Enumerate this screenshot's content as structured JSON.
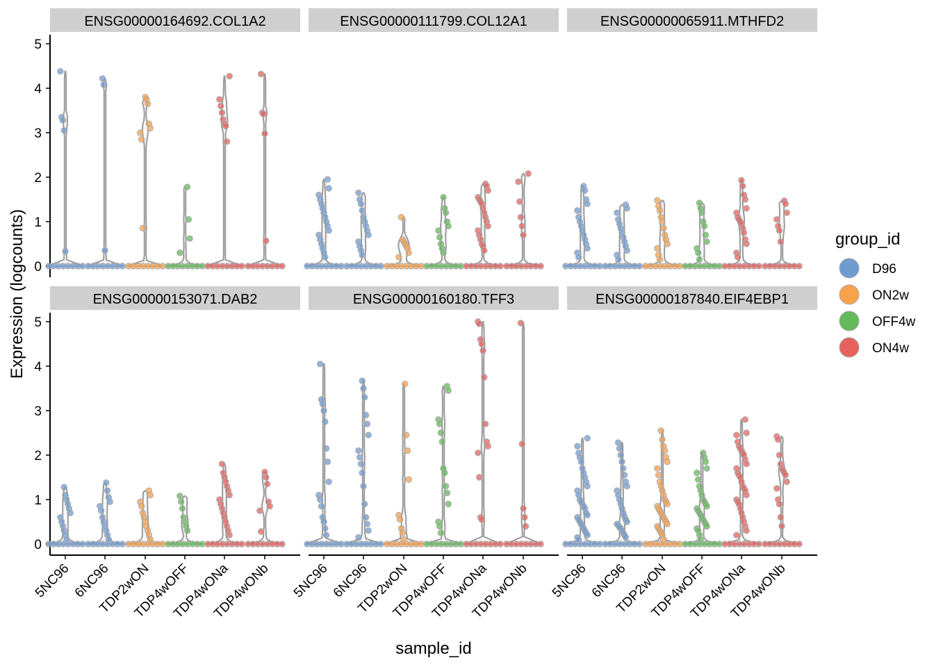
{
  "chart_data": {
    "type": "violin",
    "xlabel": "sample_id",
    "ylabel": "Expression (logcounts)",
    "ylim": [
      0,
      5.2
    ],
    "yticks": [
      0,
      1,
      2,
      3,
      4,
      5
    ],
    "categories": [
      "5NC96",
      "6NC96",
      "TDP2wON",
      "TDP4wOFF",
      "TDP4wONa",
      "TDP4wONb"
    ],
    "category_group": [
      "D96",
      "D96",
      "ON2w",
      "OFF4w",
      "ON4w",
      "ON4w"
    ],
    "legend": {
      "title": "group_id",
      "position": "right",
      "entries": [
        {
          "label": "D96",
          "color": "#6F9BD1"
        },
        {
          "label": "ON2w",
          "color": "#F9A24C"
        },
        {
          "label": "OFF4w",
          "color": "#63BA5A"
        },
        {
          "label": "ON4w",
          "color": "#E6615E"
        }
      ]
    },
    "panels": [
      {
        "gene": "ENSG00000164692.COL1A2",
        "max": [
          4.38,
          4.22,
          3.8,
          1.78,
          4.27,
          4.32
        ],
        "points": [
          [
            4.38,
            3.35,
            3.28,
            3.05,
            0.33
          ],
          [
            4.22,
            4.08,
            0.35
          ],
          [
            3.8,
            3.75,
            3.65,
            3.2,
            3.1,
            3.0,
            2.85,
            0.85
          ],
          [
            1.78,
            1.05,
            0.62,
            0.3
          ],
          [
            4.27,
            3.75,
            3.6,
            3.45,
            3.3,
            3.2,
            3.15,
            2.8
          ],
          [
            4.32,
            3.45,
            3.42,
            2.98,
            0.57
          ]
        ]
      },
      {
        "gene": "ENSG00000111799.COL12A1",
        "max": [
          1.95,
          1.65,
          1.1,
          1.55,
          1.85,
          2.08
        ],
        "points": [
          [
            1.95,
            1.75,
            1.6,
            1.5,
            1.4,
            1.3,
            1.2,
            1.1,
            1.0,
            0.9,
            0.8,
            0.7,
            0.6,
            0.5,
            0.4,
            0.3,
            0.2
          ],
          [
            1.65,
            1.5,
            1.4,
            1.25,
            1.1,
            1.0,
            0.9,
            0.8,
            0.7,
            0.55,
            0.45,
            0.35,
            0.25
          ],
          [
            1.1,
            0.6,
            0.55,
            0.5,
            0.45,
            0.4,
            0.3,
            0.2
          ],
          [
            1.55,
            1.3,
            1.2,
            1.0,
            0.9,
            0.8,
            0.65,
            0.5,
            0.4,
            0.3
          ],
          [
            1.85,
            1.8,
            1.7,
            1.55,
            1.5,
            1.45,
            1.4,
            1.3,
            1.2,
            1.1,
            1.0,
            0.9,
            0.8,
            0.7,
            0.6,
            0.5,
            0.45,
            0.35
          ],
          [
            2.08,
            1.9,
            1.45,
            1.1,
            0.9,
            0.7
          ]
        ]
      },
      {
        "gene": "ENSG00000065911.MTHFD2",
        "max": [
          1.8,
          1.38,
          1.48,
          1.42,
          1.93,
          1.47
        ],
        "points": [
          [
            1.8,
            1.7,
            1.5,
            1.4,
            1.25,
            1.1,
            1.0,
            0.9,
            0.8,
            0.7,
            0.6,
            0.5,
            0.4,
            0.3,
            0.2
          ],
          [
            1.38,
            1.3,
            1.2,
            1.05,
            0.95,
            0.85,
            0.75,
            0.65,
            0.55,
            0.45,
            0.35,
            0.25,
            0.15
          ],
          [
            1.48,
            1.35,
            1.25,
            1.1,
            1.0,
            0.85,
            0.7,
            0.6,
            0.5,
            0.4,
            0.25,
            0.15
          ],
          [
            1.42,
            1.3,
            1.2,
            1.0,
            0.9,
            0.7,
            0.55,
            0.4,
            0.3,
            0.15
          ],
          [
            1.93,
            1.8,
            1.6,
            1.5,
            1.3,
            1.2,
            1.1,
            1.05,
            1.0,
            0.95,
            0.85,
            0.75,
            0.6,
            0.5,
            0.3,
            0.2
          ],
          [
            1.47,
            1.4,
            1.2,
            1.05,
            0.9,
            0.8,
            0.55
          ]
        ]
      },
      {
        "gene": "ENSG00000153071.DAB2",
        "max": [
          1.28,
          1.38,
          1.2,
          1.08,
          1.8,
          1.62
        ],
        "points": [
          [
            1.28,
            1.1,
            1.0,
            0.9,
            0.8,
            0.7,
            0.6,
            0.5,
            0.4,
            0.3,
            0.2,
            0.1
          ],
          [
            1.38,
            1.2,
            1.05,
            0.95,
            0.85,
            0.75,
            0.6,
            0.5,
            0.4,
            0.3,
            0.2,
            0.1
          ],
          [
            1.2,
            1.1,
            0.95,
            0.85,
            0.7,
            0.6,
            0.5,
            0.4,
            0.3,
            0.2,
            0.1
          ],
          [
            1.08,
            0.95,
            0.8,
            0.6,
            0.5,
            0.4,
            0.3
          ],
          [
            1.8,
            1.6,
            1.5,
            1.4,
            1.3,
            1.2,
            1.1,
            1.0,
            0.9,
            0.8,
            0.7,
            0.6,
            0.5,
            0.4,
            0.3,
            0.2
          ],
          [
            1.62,
            1.5,
            1.35,
            0.95,
            0.85,
            0.75,
            0.28
          ]
        ]
      },
      {
        "gene": "ENSG00000160180.TFF3",
        "max": [
          4.05,
          3.67,
          3.6,
          3.55,
          5.0,
          4.97
        ],
        "points": [
          [
            4.05,
            3.25,
            3.15,
            3.0,
            2.75,
            2.15,
            1.85,
            1.4,
            1.1,
            1.0,
            0.85,
            0.6,
            0.5,
            0.35,
            0.2
          ],
          [
            3.67,
            3.5,
            3.3,
            2.9,
            2.7,
            2.45,
            2.1,
            1.95,
            1.8,
            1.6,
            1.3,
            0.9,
            0.6,
            0.45,
            0.3,
            0.15
          ],
          [
            3.6,
            2.45,
            2.1,
            1.45,
            0.65,
            0.55,
            0.35,
            0.25,
            0.1
          ],
          [
            3.55,
            3.45,
            2.8,
            2.7,
            2.5,
            2.3,
            1.7,
            1.6,
            1.3,
            1.15,
            0.9,
            0.5,
            0.4,
            0.25
          ],
          [
            5.0,
            4.95,
            4.6,
            4.5,
            4.35,
            3.75,
            2.7,
            2.3,
            2.2,
            2.05,
            1.5,
            0.6,
            0.55
          ],
          [
            4.97,
            2.25,
            0.8,
            0.6,
            0.4
          ]
        ]
      },
      {
        "gene": "ENSG00000187840.EIF4EBP1",
        "max": [
          2.38,
          2.28,
          2.55,
          2.05,
          2.8,
          2.42
        ],
        "points": [
          [
            2.38,
            2.2,
            2.05,
            1.95,
            1.85,
            1.7,
            1.6,
            1.5,
            1.4,
            1.3,
            1.2,
            1.1,
            1.0,
            0.95,
            0.9,
            0.85,
            0.8,
            0.7,
            0.65,
            0.6,
            0.55,
            0.5,
            0.45,
            0.4,
            0.35,
            0.3,
            0.25,
            0.2,
            0.15,
            0.1
          ],
          [
            2.28,
            2.15,
            2.0,
            1.85,
            1.7,
            1.55,
            1.4,
            1.3,
            1.2,
            1.1,
            1.0,
            0.9,
            0.8,
            0.7,
            0.62,
            0.55,
            0.5,
            0.45,
            0.42,
            0.38,
            0.35,
            0.3,
            0.25,
            0.2,
            0.15
          ],
          [
            2.55,
            2.35,
            2.2,
            2.1,
            1.95,
            1.85,
            1.7,
            1.55,
            1.4,
            1.3,
            1.2,
            1.1,
            1.0,
            0.95,
            0.9,
            0.85,
            0.8,
            0.75,
            0.7,
            0.65,
            0.6,
            0.55,
            0.5,
            0.45,
            0.4,
            0.35,
            0.3,
            0.25,
            0.2,
            0.1
          ],
          [
            2.05,
            1.95,
            1.85,
            1.7,
            1.6,
            1.45,
            1.3,
            1.2,
            1.1,
            1.0,
            0.95,
            0.9,
            0.85,
            0.8,
            0.75,
            0.7,
            0.65,
            0.6,
            0.55,
            0.5,
            0.45,
            0.4,
            0.35,
            0.3,
            0.2,
            0.1
          ],
          [
            2.8,
            2.5,
            2.45,
            2.3,
            2.2,
            2.15,
            2.1,
            2.05,
            2.0,
            1.9,
            1.8,
            1.7,
            1.6,
            1.55,
            1.5,
            1.4,
            1.3,
            1.25,
            1.2,
            1.1,
            1.0,
            0.95,
            0.9,
            0.8,
            0.7,
            0.6,
            0.5,
            0.4,
            0.3,
            0.2
          ],
          [
            2.42,
            2.35,
            2.0,
            1.8,
            1.7,
            1.65,
            1.6,
            1.55,
            1.4,
            1.25,
            1.0,
            0.9,
            0.6,
            0.4
          ]
        ]
      }
    ]
  }
}
